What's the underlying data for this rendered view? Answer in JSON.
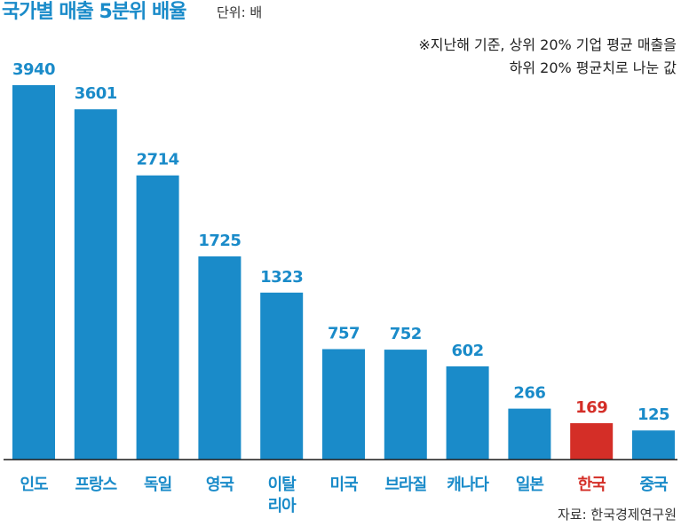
{
  "title": "국가별 매출 5분위 배율",
  "unit": "단위: 배",
  "note": [
    "※지난해 기준, 상위 20% 기업 평균 매출을",
    "하위 20% 평균치로 나눈 값"
  ],
  "source": "자료: 한국경제연구원",
  "colors": {
    "title": "#1a8bc9",
    "bar": "#1a8bc9",
    "highlight": "#d42e27",
    "label": "#1a8bc9",
    "axis": "#1a1a1a"
  },
  "chart_data": {
    "type": "bar",
    "categories": [
      "인도",
      "프랑스",
      "독일",
      "영국",
      "이탈리아",
      "미국",
      "브라질",
      "캐나다",
      "일본",
      "한국",
      "중국"
    ],
    "category_lines": [
      [
        "인도"
      ],
      [
        "프랑스"
      ],
      [
        "독일"
      ],
      [
        "영국"
      ],
      [
        "이탈",
        "리아"
      ],
      [
        "미국"
      ],
      [
        "브라질"
      ],
      [
        "캐나다"
      ],
      [
        "일본"
      ],
      [
        "한국"
      ],
      [
        "중국"
      ]
    ],
    "values": [
      3940,
      3601,
      2714,
      1725,
      1323,
      757,
      752,
      602,
      266,
      169,
      125
    ],
    "highlight": "한국",
    "title": "국가별 매출 5분위 배율",
    "xlabel": "",
    "ylabel": "",
    "ylim": [
      0,
      4000
    ],
    "scale": "nonlinear (bar heights compressed)",
    "grid": false,
    "legend": "none"
  }
}
